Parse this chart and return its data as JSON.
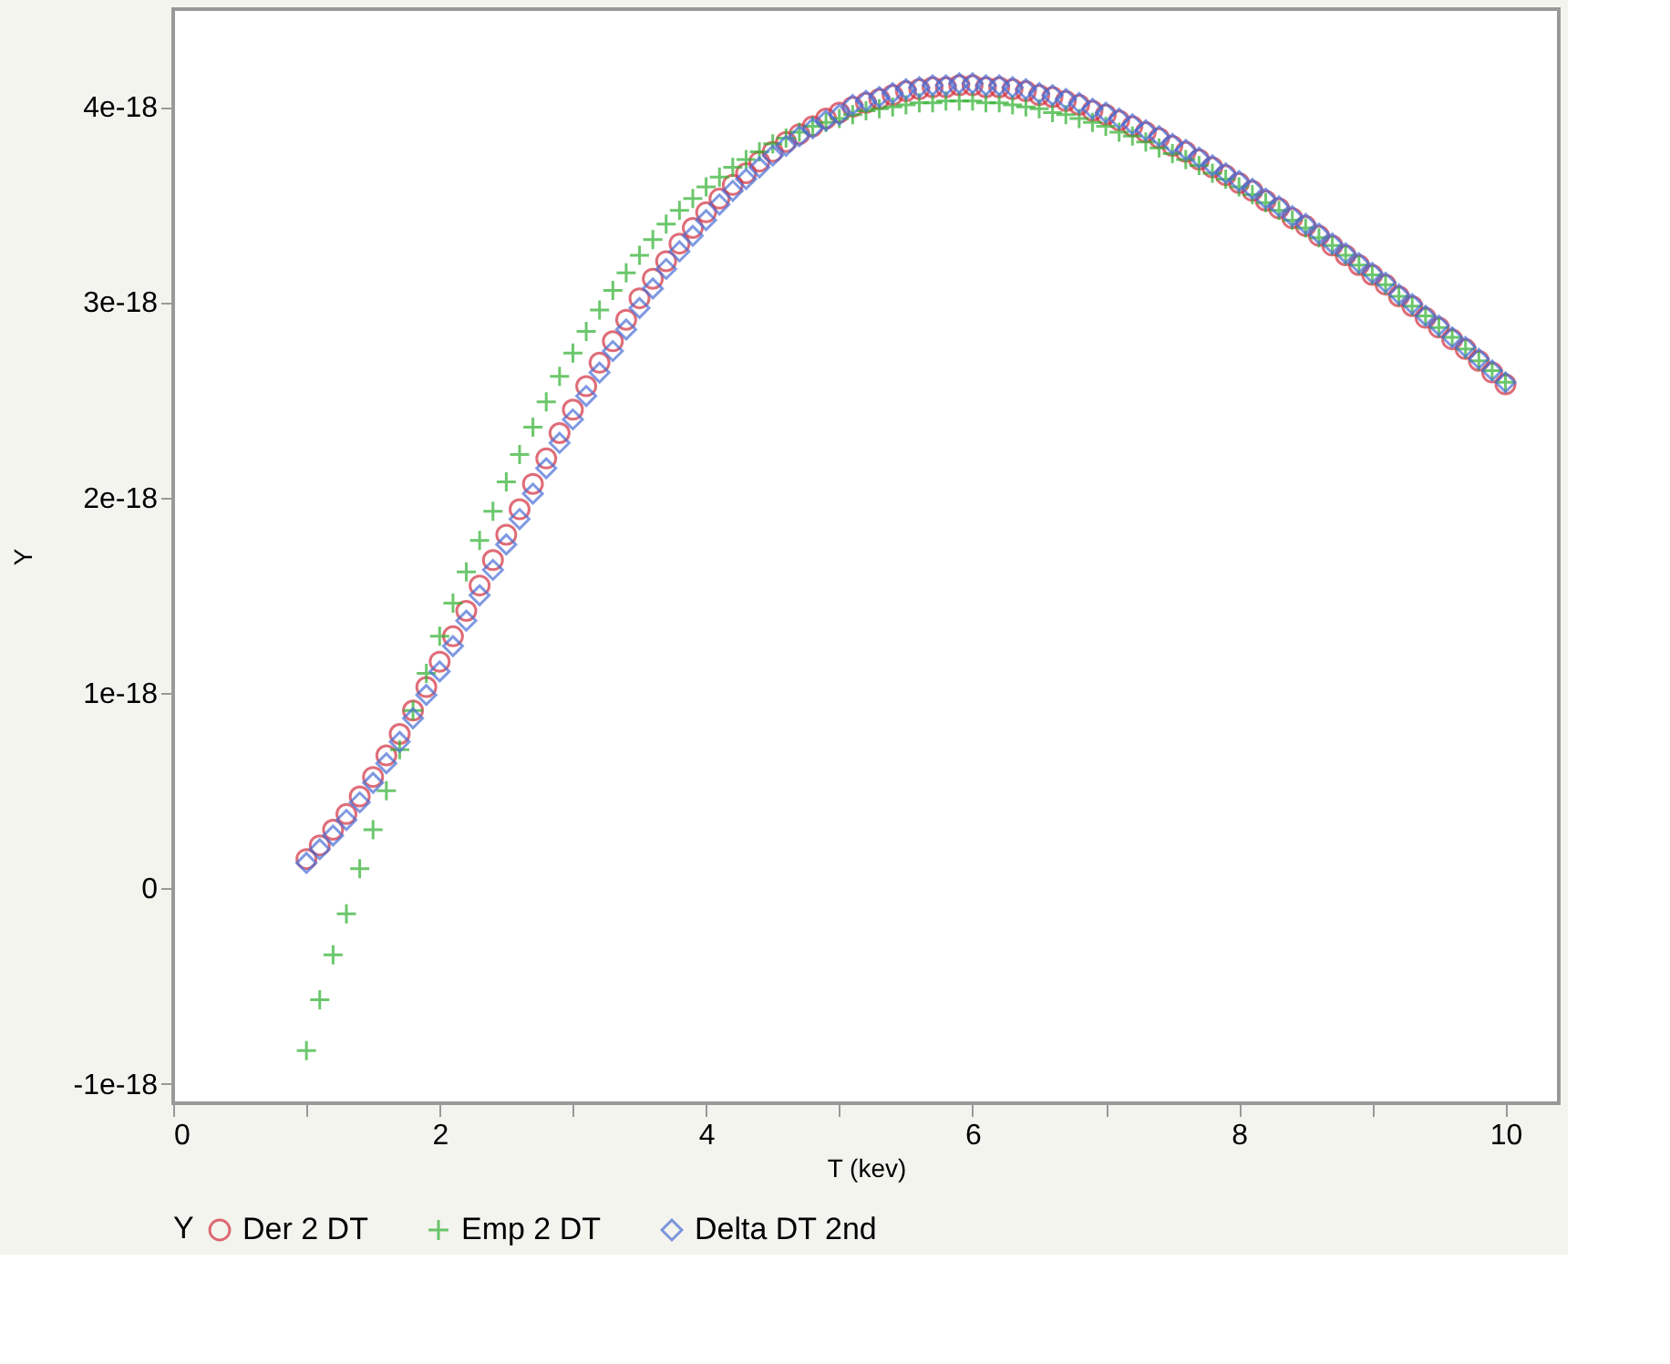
{
  "chart_data": {
    "type": "scatter",
    "xlabel": "T (kev)",
    "ylabel": "Y",
    "legend_title": "Y",
    "legend": "bottom",
    "grid": false,
    "xlim": [
      0,
      10.4
    ],
    "ylim": [
      -1.1e-18,
      4.5e-18
    ],
    "xticks": [
      0,
      {
        "value": 1,
        "label": null
      },
      2,
      {
        "value": 3,
        "label": null
      },
      4,
      {
        "value": 5,
        "label": null
      },
      6,
      {
        "value": 7,
        "label": null
      },
      8,
      {
        "value": 9,
        "label": null
      },
      10
    ],
    "yticks": [
      {
        "value": -1e-18,
        "label": "-1e-18"
      },
      {
        "value": 0,
        "label": "0"
      },
      {
        "value": 1e-18,
        "label": "1e-18"
      },
      {
        "value": 2e-18,
        "label": "2e-18"
      },
      {
        "value": 3e-18,
        "label": "3e-18"
      },
      {
        "value": 4e-18,
        "label": "4e-18"
      }
    ],
    "x": [
      1.0,
      1.1,
      1.2,
      1.3,
      1.4,
      1.5,
      1.6,
      1.7,
      1.8,
      1.9,
      2.0,
      2.1,
      2.2,
      2.3,
      2.4,
      2.5,
      2.6,
      2.7,
      2.8,
      2.9,
      3.0,
      3.1,
      3.2,
      3.3,
      3.4,
      3.5,
      3.6,
      3.7,
      3.8,
      3.9,
      4.0,
      4.1,
      4.2,
      4.3,
      4.4,
      4.5,
      4.6,
      4.7,
      4.8,
      4.9,
      5.0,
      5.1,
      5.2,
      5.3,
      5.4,
      5.5,
      5.6,
      5.7,
      5.8,
      5.9,
      6.0,
      6.1,
      6.2,
      6.3,
      6.4,
      6.5,
      6.6,
      6.7,
      6.8,
      6.9,
      7.0,
      7.1,
      7.2,
      7.3,
      7.4,
      7.5,
      7.6,
      7.7,
      7.8,
      7.9,
      8.0,
      8.1,
      8.2,
      8.3,
      8.4,
      8.5,
      8.6,
      8.7,
      8.8,
      8.9,
      9.0,
      9.1,
      9.2,
      9.3,
      9.4,
      9.5,
      9.6,
      9.7,
      9.8,
      9.9,
      10.0
    ],
    "series": [
      {
        "name": "Der 2 DT",
        "color": "#d2303f",
        "marker": "circle",
        "values": [
          1.5e-19,
          2.2e-19,
          3e-19,
          3.8e-19,
          4.7e-19,
          5.7e-19,
          6.8e-19,
          7.9e-19,
          9.1e-19,
          1.03e-18,
          1.16e-18,
          1.29e-18,
          1.42e-18,
          1.55e-18,
          1.68e-18,
          1.81e-18,
          1.94e-18,
          2.07e-18,
          2.2e-18,
          2.33e-18,
          2.45e-18,
          2.57e-18,
          2.69e-18,
          2.8e-18,
          2.91e-18,
          3.02e-18,
          3.12e-18,
          3.21e-18,
          3.3e-18,
          3.38e-18,
          3.46e-18,
          3.53e-18,
          3.6e-18,
          3.66e-18,
          3.72e-18,
          3.77e-18,
          3.82e-18,
          3.86e-18,
          3.9e-18,
          3.94e-18,
          3.97e-18,
          4e-18,
          4.02e-18,
          4.04e-18,
          4.06e-18,
          4.08e-18,
          4.09e-18,
          4.1e-18,
          4.1e-18,
          4.11e-18,
          4.11e-18,
          4.1e-18,
          4.1e-18,
          4.09e-18,
          4.08e-18,
          4.06e-18,
          4.05e-18,
          4.03e-18,
          4.01e-18,
          3.98e-18,
          3.96e-18,
          3.93e-18,
          3.9e-18,
          3.87e-18,
          3.84e-18,
          3.8e-18,
          3.77e-18,
          3.73e-18,
          3.69e-18,
          3.65e-18,
          3.61e-18,
          3.57e-18,
          3.52e-18,
          3.48e-18,
          3.43e-18,
          3.39e-18,
          3.34e-18,
          3.29e-18,
          3.24e-18,
          3.19e-18,
          3.14e-18,
          3.09e-18,
          3.03e-18,
          2.98e-18,
          2.92e-18,
          2.87e-18,
          2.81e-18,
          2.76e-18,
          2.7e-18,
          2.64e-18,
          2.58e-18
        ]
      },
      {
        "name": "Emp 2 DT",
        "color": "#2fb02f",
        "marker": "cross",
        "values": [
          -8.3e-19,
          -5.7e-19,
          -3.4e-19,
          -1.3e-19,
          1e-19,
          3e-19,
          5e-19,
          7.1e-19,
          9.1e-19,
          1.1e-18,
          1.29e-18,
          1.46e-18,
          1.62e-18,
          1.78e-18,
          1.93e-18,
          2.08e-18,
          2.22e-18,
          2.36e-18,
          2.49e-18,
          2.62e-18,
          2.74e-18,
          2.85e-18,
          2.96e-18,
          3.06e-18,
          3.15e-18,
          3.24e-18,
          3.32e-18,
          3.4e-18,
          3.47e-18,
          3.53e-18,
          3.59e-18,
          3.64e-18,
          3.69e-18,
          3.73e-18,
          3.77e-18,
          3.81e-18,
          3.84e-18,
          3.87e-18,
          3.9e-18,
          3.92e-18,
          3.94e-18,
          3.96e-18,
          3.98e-18,
          3.99e-18,
          4e-18,
          4.01e-18,
          4.02e-18,
          4.02e-18,
          4.03e-18,
          4.03e-18,
          4.03e-18,
          4.02e-18,
          4.02e-18,
          4.01e-18,
          4e-18,
          3.99e-18,
          3.97e-18,
          3.96e-18,
          3.94e-18,
          3.92e-18,
          3.9e-18,
          3.87e-18,
          3.85e-18,
          3.82e-18,
          3.79e-18,
          3.76e-18,
          3.73e-18,
          3.7e-18,
          3.66e-18,
          3.63e-18,
          3.59e-18,
          3.55e-18,
          3.51e-18,
          3.47e-18,
          3.42e-18,
          3.38e-18,
          3.33e-18,
          3.29e-18,
          3.24e-18,
          3.19e-18,
          3.14e-18,
          3.09e-18,
          3.03e-18,
          2.98e-18,
          2.93e-18,
          2.87e-18,
          2.82e-18,
          2.76e-18,
          2.7e-18,
          2.65e-18,
          2.59e-18
        ]
      },
      {
        "name": "Delta DT 2nd",
        "color": "#4a6fd6",
        "marker": "diamond",
        "values": [
          1.3e-19,
          2e-19,
          2.7e-19,
          3.5e-19,
          4.4e-19,
          5.4e-19,
          6.4e-19,
          7.5e-19,
          8.7e-19,
          9.9e-19,
          1.11e-18,
          1.24e-18,
          1.37e-18,
          1.5e-18,
          1.63e-18,
          1.76e-18,
          1.89e-18,
          2.02e-18,
          2.15e-18,
          2.28e-18,
          2.4e-18,
          2.52e-18,
          2.64e-18,
          2.75e-18,
          2.86e-18,
          2.97e-18,
          3.07e-18,
          3.17e-18,
          3.26e-18,
          3.34e-18,
          3.42e-18,
          3.5e-18,
          3.57e-18,
          3.63e-18,
          3.69e-18,
          3.75e-18,
          3.8e-18,
          3.85e-18,
          3.89e-18,
          3.93e-18,
          3.96e-18,
          4.01e-18,
          4.03e-18,
          4.05e-18,
          4.07e-18,
          4.09e-18,
          4.1e-18,
          4.11e-18,
          4.11e-18,
          4.12e-18,
          4.12e-18,
          4.11e-18,
          4.11e-18,
          4.1e-18,
          4.09e-18,
          4.07e-18,
          4.06e-18,
          4.04e-18,
          4.02e-18,
          3.99e-18,
          3.97e-18,
          3.94e-18,
          3.91e-18,
          3.88e-18,
          3.85e-18,
          3.81e-18,
          3.78e-18,
          3.74e-18,
          3.7e-18,
          3.66e-18,
          3.62e-18,
          3.58e-18,
          3.53e-18,
          3.49e-18,
          3.44e-18,
          3.4e-18,
          3.35e-18,
          3.3e-18,
          3.25e-18,
          3.2e-18,
          3.15e-18,
          3.1e-18,
          3.04e-18,
          2.99e-18,
          2.93e-18,
          2.88e-18,
          2.82e-18,
          2.77e-18,
          2.71e-18,
          2.65e-18,
          2.59e-18
        ]
      }
    ]
  }
}
